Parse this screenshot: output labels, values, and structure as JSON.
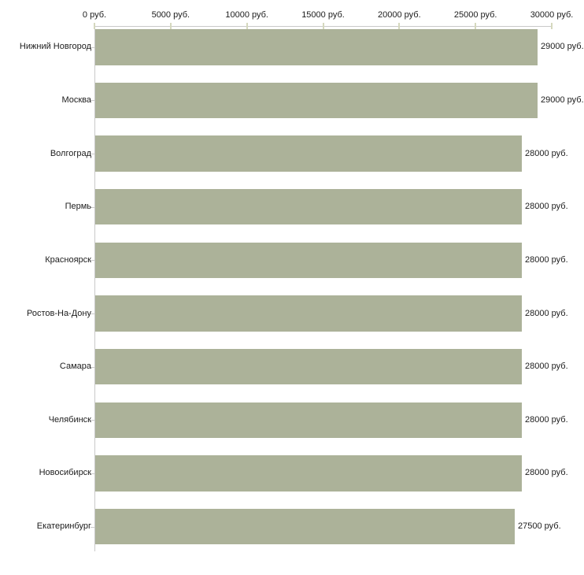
{
  "chart_data": {
    "type": "bar",
    "orientation": "horizontal",
    "title": "",
    "xlabel": "",
    "ylabel": "",
    "unit": "руб.",
    "xlim": [
      0,
      30000
    ],
    "grid": false,
    "legend": null,
    "categories": [
      "Нижний Новгород",
      "Москва",
      "Волгоград",
      "Пермь",
      "Красноярск",
      "Ростов-На-Дону",
      "Самара",
      "Челябинск",
      "Новосибирск",
      "Екатеринбург"
    ],
    "values": [
      29000,
      29000,
      28000,
      28000,
      28000,
      28000,
      28000,
      28000,
      28000,
      27500
    ],
    "value_labels": [
      "29000 руб.",
      "29000 руб.",
      "28000 руб.",
      "28000 руб.",
      "28000 руб.",
      "28000 руб.",
      "28000 руб.",
      "28000 руб.",
      "28000 руб.",
      "27500 руб."
    ],
    "x_ticks": [
      {
        "value": 0,
        "label": "0 руб."
      },
      {
        "value": 5000,
        "label": "5000 руб."
      },
      {
        "value": 10000,
        "label": "10000 руб."
      },
      {
        "value": 15000,
        "label": "15000 руб."
      },
      {
        "value": 20000,
        "label": "20000 руб."
      },
      {
        "value": 25000,
        "label": "25000 руб."
      },
      {
        "value": 30000,
        "label": "30000 руб."
      }
    ]
  },
  "colors": {
    "bar": "#acb299",
    "axis_line": "#c9c9c9",
    "x_tick_mark": "#d5d8be",
    "y_tick_mark": "#c9c9c9",
    "text": "#1c1c1c",
    "background": "#ffffff"
  }
}
